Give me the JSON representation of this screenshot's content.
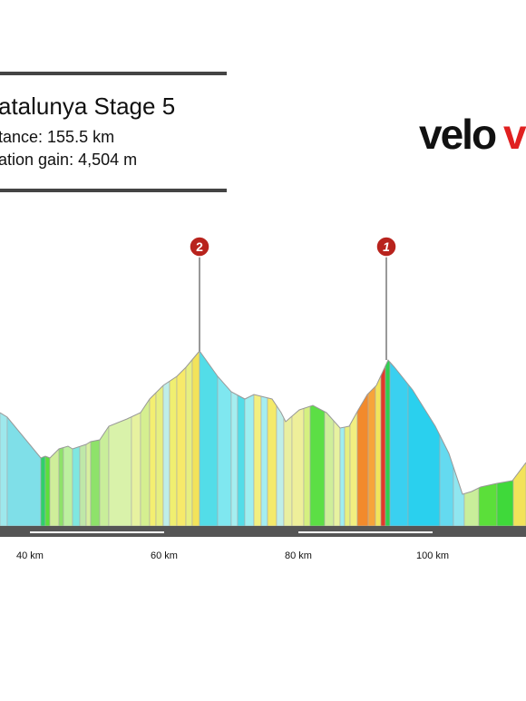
{
  "header": {
    "title": "atalunya Stage 5",
    "distance": "tance: 155.5 km",
    "elevation": "ation gain: 4,504 m"
  },
  "logo": {
    "text": "velo",
    "accent": "v"
  },
  "climbs": [
    {
      "label": "2"
    },
    {
      "label": "1"
    }
  ],
  "x_axis": {
    "labels": [
      "40 km",
      "60 km",
      "80 km",
      "100 km"
    ]
  }
}
